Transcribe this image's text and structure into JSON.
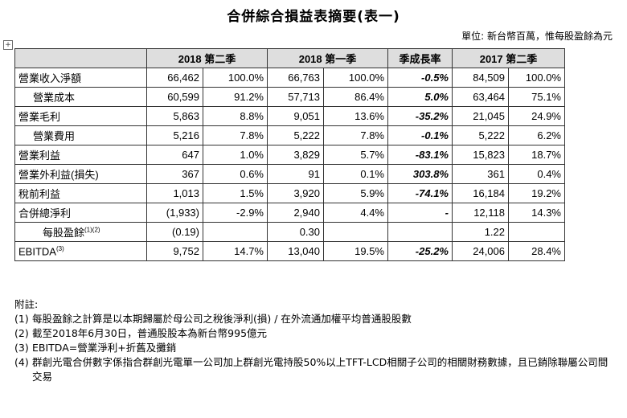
{
  "title": "合併綜合損益表摘要(表一)",
  "unit_note": "單位: 新台幣百萬，惟每股盈餘為元",
  "table": {
    "headers": [
      "",
      "2018 第二季",
      "2018 第一季",
      "季成長率",
      "2017 第二季"
    ],
    "rows": [
      {
        "label": "營業收入淨額",
        "q2_2018_val": "66,462",
        "q2_2018_pct": "100.0%",
        "q1_2018_val": "66,763",
        "q1_2018_pct": "100.0%",
        "qoq": "-0.5%",
        "q2_2017_val": "84,509",
        "q2_2017_pct": "100.0%"
      },
      {
        "label": "營業成本",
        "q2_2018_val": "60,599",
        "q2_2018_pct": "91.2%",
        "q1_2018_val": "57,713",
        "q1_2018_pct": "86.4%",
        "qoq": "5.0%",
        "q2_2017_val": "63,464",
        "q2_2017_pct": "75.1%"
      },
      {
        "label": "營業毛利",
        "q2_2018_val": "5,863",
        "q2_2018_pct": "8.8%",
        "q1_2018_val": "9,051",
        "q1_2018_pct": "13.6%",
        "qoq": "-35.2%",
        "q2_2017_val": "21,045",
        "q2_2017_pct": "24.9%"
      },
      {
        "label": "營業費用",
        "q2_2018_val": "5,216",
        "q2_2018_pct": "7.8%",
        "q1_2018_val": "5,222",
        "q1_2018_pct": "7.8%",
        "qoq": "-0.1%",
        "q2_2017_val": "5,222",
        "q2_2017_pct": "6.2%"
      },
      {
        "label": "營業利益",
        "q2_2018_val": "647",
        "q2_2018_pct": "1.0%",
        "q1_2018_val": "3,829",
        "q1_2018_pct": "5.7%",
        "qoq": "-83.1%",
        "q2_2017_val": "15,823",
        "q2_2017_pct": "18.7%"
      },
      {
        "label": "營業外利益(損失)",
        "q2_2018_val": "367",
        "q2_2018_pct": "0.6%",
        "q1_2018_val": "91",
        "q1_2018_pct": "0.1%",
        "qoq": "303.8%",
        "q2_2017_val": "361",
        "q2_2017_pct": "0.4%"
      },
      {
        "label": "稅前利益",
        "q2_2018_val": "1,013",
        "q2_2018_pct": "1.5%",
        "q1_2018_val": "3,920",
        "q1_2018_pct": "5.9%",
        "qoq": "-74.1%",
        "q2_2017_val": "16,184",
        "q2_2017_pct": "19.2%"
      },
      {
        "label": "合併總淨利",
        "q2_2018_val": "(1,933)",
        "q2_2018_pct": "-2.9%",
        "q1_2018_val": "2,940",
        "q1_2018_pct": "4.4%",
        "qoq": "-",
        "q2_2017_val": "12,118",
        "q2_2017_pct": "14.3%"
      },
      {
        "label": "每股盈餘",
        "label_sup": "(1)(2)",
        "q2_2018_val": "(0.19)",
        "q2_2018_pct": "",
        "q1_2018_val": "0.30",
        "q1_2018_pct": "",
        "qoq": "",
        "q2_2017_val": "1.22",
        "q2_2017_pct": ""
      },
      {
        "label": "EBITDA",
        "label_sup": "(3)",
        "q2_2018_val": "9,752",
        "q2_2018_pct": "14.7%",
        "q1_2018_val": "13,040",
        "q1_2018_pct": "19.5%",
        "qoq": "-25.2%",
        "q2_2017_val": "24,006",
        "q2_2017_pct": "28.4%"
      }
    ]
  },
  "notes": {
    "heading": "附註:",
    "items": [
      {
        "num": "(1)",
        "text": "每股盈餘之計算是以本期歸屬於母公司之稅後淨利(損) / 在外流通加權平均普通股股數"
      },
      {
        "num": "(2)",
        "text": "截至2018年6月30日，普通股股本為新台幣995億元"
      },
      {
        "num": "(3)",
        "text": "EBITDA=營業淨利+折舊及攤銷"
      },
      {
        "num": "(4)",
        "text": "群創光電合併數字係指合群創光電單一公司加上群創光電持股50%以上TFT-LCD相關子公司的相關財務數據，且已銷除聯屬公司間交易"
      }
    ]
  }
}
